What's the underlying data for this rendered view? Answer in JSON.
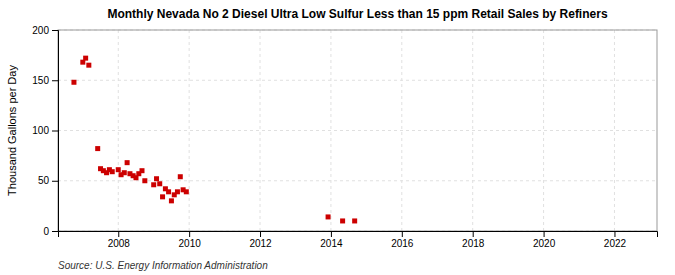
{
  "chart_data": {
    "type": "scatter",
    "title": "Monthly Nevada No 2 Diesel Ultra Low Sulfur Less than 15 ppm Retail Sales by Refiners",
    "ylabel": "Thousand Gallons per Day",
    "annotations": [
      "Source: U.S. Energy Information Administration"
    ],
    "color": "#cc0000",
    "marker": "square",
    "grid": true,
    "xlim": [
      2006.3,
      2023.2
    ],
    "ylim": [
      0,
      200
    ],
    "xticks": [
      2008,
      2010,
      2012,
      2014,
      2016,
      2018,
      2020,
      2022
    ],
    "yticks": [
      0,
      50,
      100,
      150,
      200
    ],
    "x": [
      2006.75,
      2007.0,
      2007.08,
      2007.17,
      2007.42,
      2007.5,
      2007.58,
      2007.67,
      2007.75,
      2007.83,
      2008.0,
      2008.08,
      2008.17,
      2008.25,
      2008.33,
      2008.42,
      2008.5,
      2008.58,
      2008.67,
      2008.75,
      2009.0,
      2009.08,
      2009.17,
      2009.25,
      2009.33,
      2009.42,
      2009.5,
      2009.58,
      2009.67,
      2009.75,
      2009.83,
      2009.92,
      2013.92,
      2014.33,
      2014.67
    ],
    "values": [
      148,
      168,
      172,
      165,
      82,
      62,
      60,
      58,
      61,
      59,
      61,
      56,
      58,
      68,
      57,
      55,
      53,
      57,
      60,
      50,
      46,
      52,
      47,
      34,
      42,
      39,
      30,
      36,
      39,
      54,
      41,
      39,
      14,
      10,
      10
    ]
  }
}
